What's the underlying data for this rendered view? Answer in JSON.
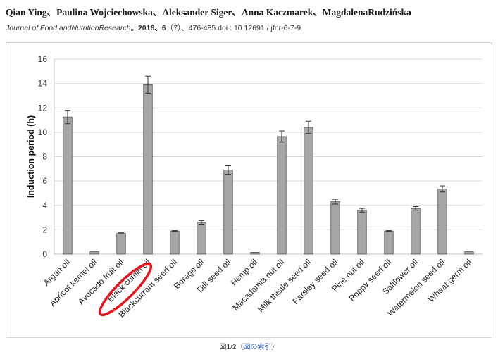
{
  "header": {
    "authors": "Qian Ying、Paulina Wojciechowska、Aleksander Siger、Anna Kaczmarek、MagdalenaRudzińska",
    "journal": "Journal of Food andNutritionResearch",
    "sep": "。",
    "year_vol": "2018、6",
    "issue_pages": "（7）、476-485 doi : 10.12691 / jfnr-6-7-9"
  },
  "caption": {
    "prefix": "図1/2（",
    "link": "図の索引",
    "suffix": "）"
  },
  "colors": {
    "bar": "#a6a6a6",
    "bar_border": "#555555",
    "highlight": "#e8141c"
  },
  "chart_data": {
    "type": "bar",
    "ylabel": "Induction period (h)",
    "ylim": [
      0,
      16
    ],
    "yticks": [
      0,
      2,
      4,
      6,
      8,
      10,
      12,
      14,
      16
    ],
    "grid": "horizontal",
    "categories": [
      "Argan oil",
      "Apricot kernel oil",
      "Avocado fruit oil",
      "Black cumin oil",
      "Blackcurrant seed oil",
      "Borage oil",
      "Dill seed oil",
      "Hemp oil",
      "Macadamia nut oil",
      "Milk thistle seed oil",
      "Parsley seed oil",
      "Pine nut oil",
      "Poppy seed oil",
      "Safflower oil",
      "Watermelon seed oil",
      "Wheat germ oil"
    ],
    "values": [
      11.25,
      0.2,
      1.7,
      13.9,
      1.9,
      2.6,
      6.9,
      0.15,
      9.65,
      10.4,
      4.3,
      3.6,
      1.9,
      3.75,
      5.35,
      0.2
    ],
    "errors": [
      0.55,
      0.0,
      0.05,
      0.7,
      0.05,
      0.15,
      0.35,
      0.0,
      0.45,
      0.5,
      0.2,
      0.15,
      0.05,
      0.15,
      0.25,
      0.0
    ],
    "highlighted_category": "Black cumin oil"
  }
}
